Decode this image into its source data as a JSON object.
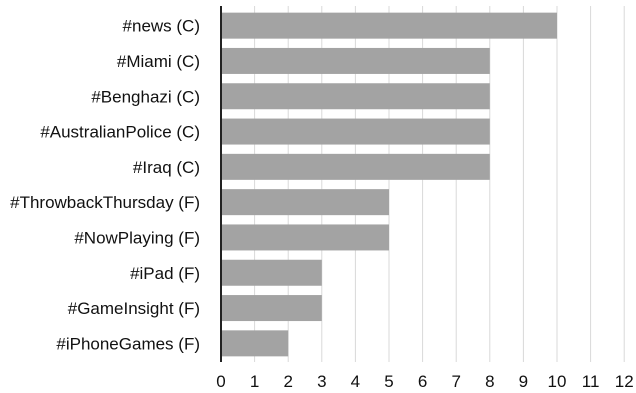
{
  "chart_data": {
    "type": "bar",
    "orientation": "horizontal",
    "title": "",
    "xlabel": "",
    "ylabel": "",
    "categories": [
      "#news (C)",
      "#Miami (C)",
      "#Benghazi (C)",
      "#AustralianPolice (C)",
      "#Iraq (C)",
      "#ThrowbackThursday (F)",
      "#NowPlaying (F)",
      "#iPad (F)",
      "#GameInsight (F)",
      "#iPhoneGames (F)"
    ],
    "values": [
      10,
      8,
      8,
      8,
      8,
      5,
      5,
      3,
      3,
      2
    ],
    "xlim": [
      0,
      12
    ],
    "xticks": [
      0,
      1,
      2,
      3,
      4,
      5,
      6,
      7,
      8,
      9,
      10,
      11,
      12
    ],
    "grid": "vertical",
    "legend": "none",
    "bar_color": "#a3a3a3",
    "grid_color": "#d9d9d9",
    "axis_color": "#222222"
  }
}
